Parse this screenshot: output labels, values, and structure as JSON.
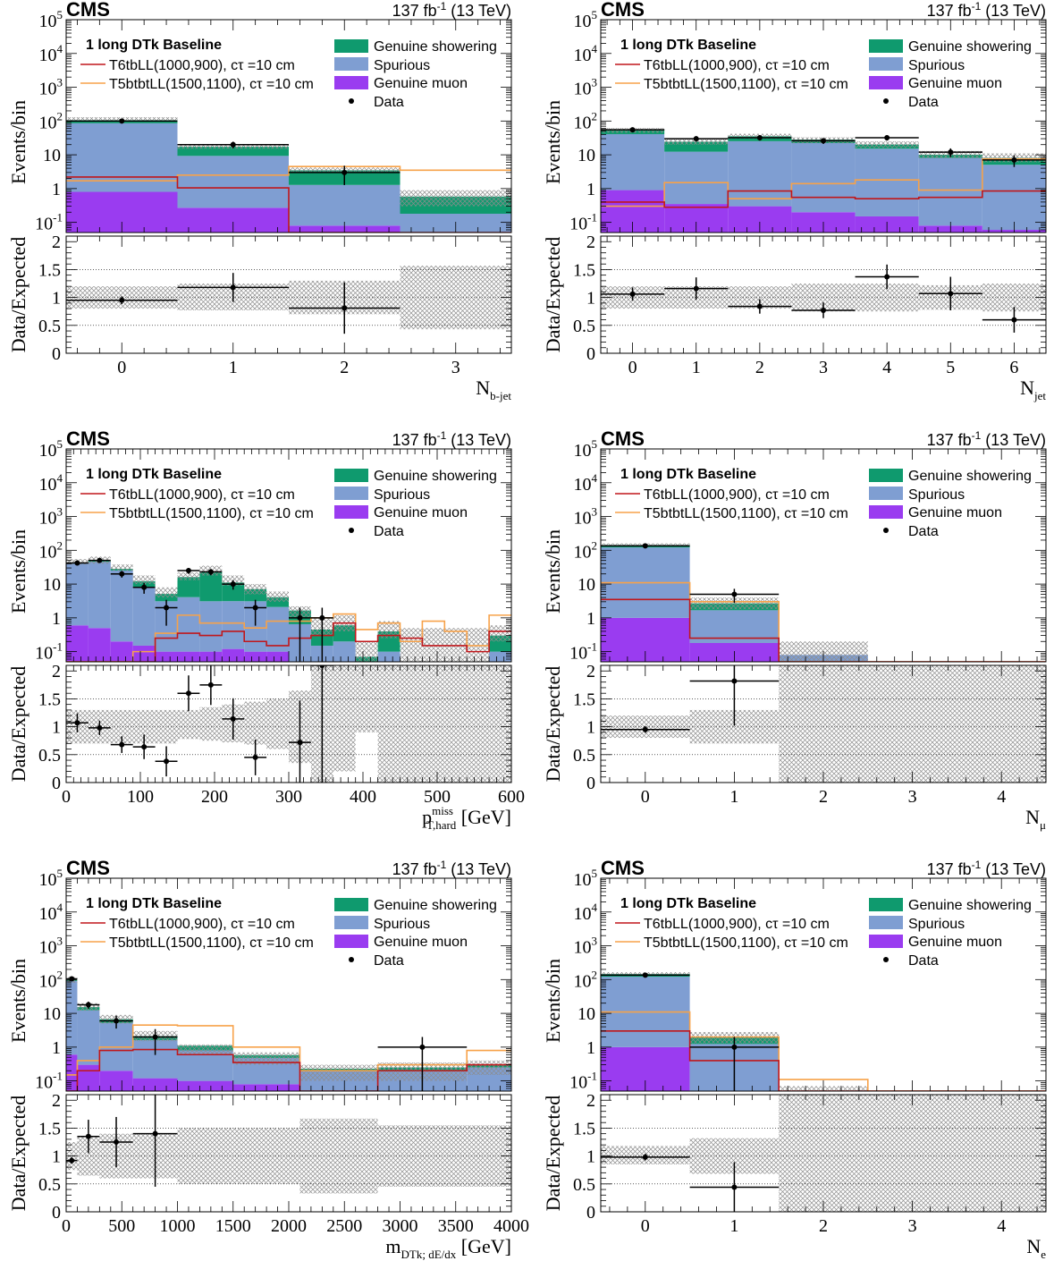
{
  "common": {
    "experiment": "CMS",
    "lumi": "137 fb",
    "lumi_sup": "-1",
    "energy": "(13 TeV)",
    "selection": "1 long DTk Baseline",
    "ratio_ylabel": "Data/Expected",
    "main_ylabel": "Events/bin",
    "legend": {
      "signal1": "T6tbLL(1000,900), cτ =10 cm",
      "signal2": "T5btbtLL(1500,1100), cτ =10 cm",
      "showering": "Genuine showering",
      "spurious": "Spurious",
      "muon": "Genuine muon",
      "data": "Data"
    },
    "colors": {
      "showering": "#0f9a6e",
      "spurious": "#7f9ed2",
      "muon": "#9a3cf0",
      "signal1": "#c0171b",
      "signal2": "#f7a24a",
      "data": "#000000",
      "uncertainty": "#8c8c8c"
    },
    "log_tick_labels": [
      "10^-1",
      "1",
      "10",
      "10^2",
      "10^3",
      "10^4",
      "10^5"
    ],
    "ratio_ticks": [
      "0",
      "0.5",
      "1",
      "1.5",
      "2"
    ]
  },
  "chart_data": [
    {
      "type": "bar",
      "xlabel_main": "N",
      "xlabel_sub": "b-jet",
      "xlabel_unit": "",
      "edges": [
        -0.5,
        0.5,
        1.5,
        2.5,
        3.5
      ],
      "xticks": [
        0,
        1,
        2,
        3
      ],
      "muon": [
        0.8,
        0.27,
        0.08,
        0
      ],
      "spurious": [
        85,
        9,
        1.2,
        0.18
      ],
      "showering": [
        20,
        8,
        2.2,
        0.4
      ],
      "unc_lo": [
        100,
        15,
        3.0,
        0.3
      ],
      "unc_hi": [
        130,
        20,
        4.2,
        0.9
      ],
      "signal1": [
        2.2,
        1.05,
        0.04,
        0.04
      ],
      "signal2": [
        1.7,
        2.5,
        4.5,
        3.5
      ],
      "data": [
        {
          "x": 0,
          "y": 100
        },
        {
          "x": 1,
          "y": 20
        },
        {
          "x": 2,
          "y": 3
        }
      ],
      "ratio": [
        {
          "x": 0,
          "y": 0.95,
          "e": 0.07,
          "xe": 0.5
        },
        {
          "x": 1,
          "y": 1.18,
          "e": 0.26,
          "xe": 0.5
        },
        {
          "x": 2,
          "y": 0.81,
          "e": 0.46,
          "xe": 0.5
        }
      ],
      "ratio_unc": [
        [
          0.8,
          1.2
        ],
        [
          0.77,
          1.25
        ],
        [
          0.7,
          1.3
        ],
        [
          0.43,
          1.57
        ]
      ],
      "ylim": [
        0.05,
        100000
      ],
      "ratio_ylim": [
        0,
        2.1
      ]
    },
    {
      "type": "bar",
      "xlabel_main": "N",
      "xlabel_sub": "jet",
      "xlabel_unit": "",
      "edges": [
        -0.5,
        0.5,
        1.5,
        2.5,
        3.5,
        4.5,
        5.5,
        6.5
      ],
      "xticks": [
        0,
        1,
        2,
        3,
        4,
        5,
        6
      ],
      "muon": [
        0.9,
        0.35,
        0.3,
        0.2,
        0.15,
        0.08,
        0.06
      ],
      "spurious": [
        40,
        12,
        25,
        22,
        15,
        8,
        5
      ],
      "showering": [
        15,
        12,
        10,
        6,
        5,
        2,
        3
      ],
      "unc_lo": [
        45,
        20,
        30,
        22,
        16,
        8,
        6
      ],
      "unc_hi": [
        62,
        30,
        42,
        33,
        25,
        13,
        11
      ],
      "signal1": [
        0.4,
        0.28,
        0.85,
        0.55,
        0.5,
        0.55,
        0.85
      ],
      "signal2": [
        0.3,
        1.5,
        0.5,
        1.4,
        1.8,
        0.9,
        7.5
      ],
      "data": [
        {
          "x": 0,
          "y": 55
        },
        {
          "x": 1,
          "y": 30
        },
        {
          "x": 2,
          "y": 32
        },
        {
          "x": 3,
          "y": 26
        },
        {
          "x": 4,
          "y": 32
        },
        {
          "x": 5,
          "y": 12
        },
        {
          "x": 6,
          "y": 7
        }
      ],
      "ratio": [
        {
          "x": 0,
          "y": 1.06,
          "e": 0.12,
          "xe": 0.5
        },
        {
          "x": 1,
          "y": 1.16,
          "e": 0.2,
          "xe": 0.5
        },
        {
          "x": 2,
          "y": 0.84,
          "e": 0.13,
          "xe": 0.5
        },
        {
          "x": 3,
          "y": 0.77,
          "e": 0.14,
          "xe": 0.5
        },
        {
          "x": 4,
          "y": 1.37,
          "e": 0.22,
          "xe": 0.5
        },
        {
          "x": 5,
          "y": 1.07,
          "e": 0.3,
          "xe": 0.5
        },
        {
          "x": 6,
          "y": 0.6,
          "e": 0.23,
          "xe": 0.5
        }
      ],
      "ratio_unc": [
        [
          0.8,
          1.2
        ],
        [
          0.8,
          1.2
        ],
        [
          0.8,
          1.2
        ],
        [
          0.75,
          1.25
        ],
        [
          0.75,
          1.25
        ],
        [
          0.78,
          1.22
        ],
        [
          0.75,
          1.25
        ]
      ],
      "ylim": [
        0.05,
        100000
      ],
      "ratio_ylim": [
        0,
        2.1
      ]
    },
    {
      "type": "bar",
      "xlabel_main": "p",
      "xlabel_sup": "miss",
      "xlabel_sub": "T,hard",
      "xlabel_unit": "[GeV]",
      "edges": [
        0,
        30,
        60,
        90,
        120,
        150,
        180,
        210,
        240,
        270,
        300,
        330,
        360,
        390,
        420,
        450,
        480,
        510,
        540,
        570,
        600
      ],
      "xticks": [
        0,
        100,
        200,
        300,
        400,
        500,
        600
      ],
      "muon": [
        0.6,
        0.5,
        0.2,
        0.15,
        0.1,
        0.1,
        0.1,
        0.12,
        0.1,
        0.1,
        0.05,
        0,
        0,
        0,
        0,
        0,
        0,
        0,
        0,
        0
      ],
      "spurious": [
        40,
        45,
        25,
        8,
        3,
        4,
        3,
        3,
        3,
        2,
        0.6,
        0.15,
        0.2,
        0.05,
        0.1,
        0,
        0,
        0,
        0,
        0.1
      ],
      "showering": [
        3,
        4,
        3,
        4,
        2,
        12,
        20,
        8,
        4,
        2,
        1,
        0.3,
        0.4,
        0.02,
        0.3,
        0,
        0,
        0,
        0,
        0.2
      ],
      "unc_lo": [
        38,
        40,
        25,
        10,
        4,
        13,
        18,
        9,
        5,
        3,
        1,
        0.3,
        0.4,
        0.03,
        0.25,
        0,
        0,
        0,
        0,
        0.2
      ],
      "unc_hi": [
        55,
        65,
        38,
        18,
        8,
        22,
        35,
        18,
        10,
        6,
        2.2,
        1.0,
        1.2,
        0.2,
        0.8,
        0.5,
        0.5,
        0.5,
        0.5,
        0.6
      ],
      "signal1": [
        0.04,
        0.04,
        0.04,
        0.04,
        0.25,
        0.35,
        0.3,
        0.4,
        0.2,
        0.15,
        0.25,
        0.3,
        0.7,
        0.2,
        0.3,
        0.25,
        0.15,
        0.15,
        0.1,
        0.4
      ],
      "signal2": [
        0.04,
        0.04,
        0.04,
        0.1,
        0.35,
        1.2,
        0.7,
        0.7,
        0.5,
        0.8,
        0.8,
        1.0,
        1.3,
        0.45,
        0.7,
        0.2,
        0.8,
        0.4,
        0.15,
        1.2
      ],
      "data": [
        {
          "x": 15,
          "y": 42
        },
        {
          "x": 45,
          "y": 50
        },
        {
          "x": 75,
          "y": 20
        },
        {
          "x": 105,
          "y": 8
        },
        {
          "x": 135,
          "y": 2
        },
        {
          "x": 165,
          "y": 25
        },
        {
          "x": 195,
          "y": 23
        },
        {
          "x": 225,
          "y": 10
        },
        {
          "x": 255,
          "y": 2
        },
        {
          "x": 315,
          "y": 1
        },
        {
          "x": 345,
          "y": 1
        }
      ],
      "ratio": [
        {
          "x": 15,
          "y": 1.07,
          "e": 0.17,
          "xe": 15
        },
        {
          "x": 45,
          "y": 0.98,
          "e": 0.13,
          "xe": 15
        },
        {
          "x": 75,
          "y": 0.68,
          "e": 0.15,
          "xe": 15
        },
        {
          "x": 105,
          "y": 0.64,
          "e": 0.22,
          "xe": 15
        },
        {
          "x": 135,
          "y": 0.38,
          "e": 0.27,
          "xe": 15
        },
        {
          "x": 165,
          "y": 1.6,
          "e": 0.32,
          "xe": 15
        },
        {
          "x": 195,
          "y": 1.75,
          "e": 0.36,
          "xe": 15
        },
        {
          "x": 225,
          "y": 1.14,
          "e": 0.37,
          "xe": 15
        },
        {
          "x": 255,
          "y": 0.45,
          "e": 0.32,
          "xe": 15
        },
        {
          "x": 315,
          "y": 0.72,
          "e": 0.75,
          "xe": 15
        },
        {
          "x": 345,
          "y": 2.3,
          "e": 2.4,
          "xe": 15
        }
      ],
      "ratio_unc": [
        [
          0.7,
          1.3
        ],
        [
          0.7,
          1.3
        ],
        [
          0.7,
          1.3
        ],
        [
          0.7,
          1.3
        ],
        [
          0.7,
          1.3
        ],
        [
          0.78,
          1.3
        ],
        [
          0.75,
          1.35
        ],
        [
          0.72,
          1.4
        ],
        [
          0.68,
          1.45
        ],
        [
          0.6,
          1.5
        ],
        [
          0.35,
          1.65
        ],
        [
          0,
          2.1
        ],
        [
          0.2,
          2.1
        ],
        [
          0.9,
          2.1
        ],
        [
          0,
          2.1
        ],
        [
          0,
          2.1
        ],
        [
          0,
          2.1
        ],
        [
          0,
          2.1
        ],
        [
          0,
          2.1
        ],
        [
          0,
          2.1
        ]
      ],
      "ylim": [
        0.05,
        100000
      ],
      "ratio_ylim": [
        0,
        2.1
      ]
    },
    {
      "type": "bar",
      "xlabel_main": "N",
      "xlabel_sub": "μ",
      "xlabel_unit": "",
      "edges": [
        -0.5,
        0.5,
        1.5,
        2.5,
        3.5,
        4.5
      ],
      "xticks": [
        0,
        1,
        2,
        3,
        4
      ],
      "muon": [
        1,
        0.18,
        0,
        0,
        0
      ],
      "spurious": [
        120,
        1.5,
        0.08,
        0,
        0
      ],
      "showering": [
        22,
        1.0,
        0,
        0,
        0
      ],
      "unc_lo": [
        130,
        1.8,
        0.04,
        0,
        0
      ],
      "unc_hi": [
        160,
        4.0,
        0.2,
        0,
        0
      ],
      "signal1": [
        3.5,
        0.25,
        0.04,
        0,
        0
      ],
      "signal2": [
        11,
        3.0,
        0.04,
        0,
        0
      ],
      "data": [
        {
          "x": 0,
          "y": 135
        },
        {
          "x": 1,
          "y": 5
        }
      ],
      "ratio": [
        {
          "x": 0,
          "y": 0.95,
          "e": 0.06,
          "xe": 0.5
        },
        {
          "x": 1,
          "y": 1.82,
          "e": 0.8,
          "xe": 0.5
        }
      ],
      "ratio_unc": [
        [
          0.8,
          1.2
        ],
        [
          0.7,
          1.3
        ],
        [
          0,
          2.1
        ],
        [
          0,
          2.1
        ],
        [
          0,
          2.1
        ]
      ],
      "ylim": [
        0.05,
        100000
      ],
      "ratio_ylim": [
        0,
        2.1
      ]
    },
    {
      "type": "bar",
      "xlabel_main": "m",
      "xlabel_sub": "DTk; dE/dx",
      "xlabel_unit": "[GeV]",
      "edges": [
        0,
        100,
        300,
        600,
        1000,
        1500,
        2100,
        2800,
        3600,
        4000
      ],
      "xticks": [
        0,
        500,
        1000,
        1500,
        2000,
        2500,
        3000,
        3500,
        4000
      ],
      "muon": [
        0.6,
        0.3,
        0.2,
        0.12,
        0.1,
        0.08,
        0.05,
        0.05,
        0.05
      ],
      "spurious": [
        90,
        12,
        5,
        1.5,
        0.7,
        0.4,
        0.15,
        0.15,
        0.2
      ],
      "showering": [
        10,
        3,
        1.5,
        0.5,
        0.3,
        0.1,
        0.03,
        0.05,
        0.05
      ],
      "unc_lo": [
        80,
        12,
        5,
        1.5,
        0.6,
        0.3,
        0.1,
        0.1,
        0.15
      ],
      "unc_hi": [
        120,
        20,
        9,
        3,
        1.2,
        0.7,
        0.3,
        0.35,
        0.4
      ],
      "signal1": [
        0.04,
        0.2,
        0.8,
        0.85,
        0.6,
        0.35,
        0.04,
        0.2,
        0.3
      ],
      "signal2": [
        0.15,
        0.4,
        1.0,
        4.5,
        4.3,
        1.0,
        0.2,
        0.3,
        0.8
      ],
      "data": [
        {
          "x": 50,
          "y": 105
        },
        {
          "x": 200,
          "y": 18
        },
        {
          "x": 450,
          "y": 6
        },
        {
          "x": 800,
          "y": 2
        },
        {
          "x": 3200,
          "y": 1
        }
      ],
      "ratio": [
        {
          "x": 50,
          "y": 0.92,
          "e": 0.06,
          "xe": 50
        },
        {
          "x": 200,
          "y": 1.35,
          "e": 0.3,
          "xe": 100
        },
        {
          "x": 450,
          "y": 1.25,
          "e": 0.45,
          "xe": 150
        },
        {
          "x": 800,
          "y": 1.4,
          "e": 0.95,
          "xe": 200
        }
      ],
      "ratio_unc": [
        [
          0.75,
          1.25
        ],
        [
          0.65,
          1.35
        ],
        [
          0.6,
          1.4
        ],
        [
          0.6,
          1.4
        ],
        [
          0.5,
          1.5
        ],
        [
          0.5,
          1.5
        ],
        [
          0.33,
          1.67
        ],
        [
          0.45,
          1.55
        ],
        [
          0.45,
          1.55
        ]
      ],
      "ylim": [
        0.05,
        100000
      ],
      "ratio_ylim": [
        0,
        2.1
      ]
    },
    {
      "type": "bar",
      "xlabel_main": "N",
      "xlabel_sub": "e",
      "xlabel_unit": "",
      "edges": [
        -0.5,
        0.5,
        1.5,
        2.5,
        3.5,
        4.5
      ],
      "xticks": [
        0,
        1,
        2,
        3,
        4
      ],
      "muon": [
        1,
        0.04,
        0,
        0,
        0
      ],
      "spurious": [
        120,
        1.2,
        0.03,
        0,
        0
      ],
      "showering": [
        25,
        0.8,
        0,
        0,
        0
      ],
      "unc_lo": [
        130,
        1.3,
        0.02,
        0,
        0
      ],
      "unc_hi": [
        165,
        2.8,
        0.07,
        0,
        0
      ],
      "signal1": [
        3.0,
        0.4,
        0.04,
        0,
        0
      ],
      "signal2": [
        11,
        2.0,
        0.11,
        0,
        0
      ],
      "data": [
        {
          "x": 0,
          "y": 135
        },
        {
          "x": 1,
          "y": 1
        }
      ],
      "ratio": [
        {
          "x": 0,
          "y": 0.98,
          "e": 0.06,
          "xe": 0.5
        },
        {
          "x": 1,
          "y": 0.44,
          "e": 0.45,
          "xe": 0.5
        }
      ],
      "ratio_unc": [
        [
          0.85,
          1.18
        ],
        [
          0.68,
          1.32
        ],
        [
          0,
          2.1
        ],
        [
          0,
          2.1
        ],
        [
          0,
          2.1
        ]
      ],
      "ylim": [
        0.05,
        100000
      ],
      "ratio_ylim": [
        0,
        2.1
      ]
    }
  ]
}
